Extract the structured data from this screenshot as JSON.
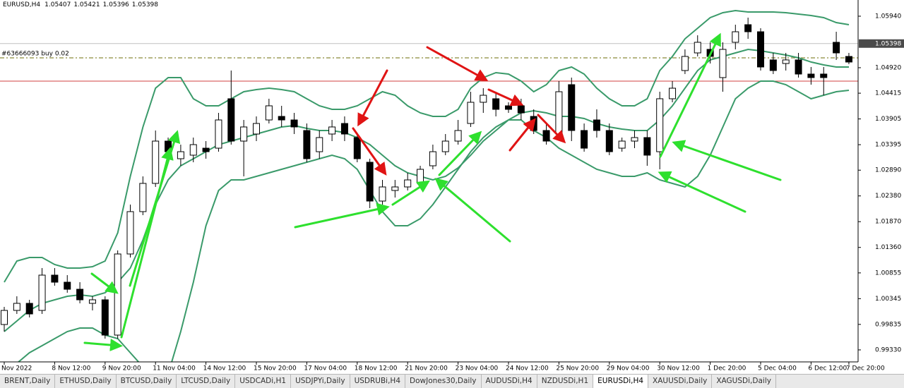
{
  "header": {
    "symbol": "EURUSD,H4",
    "ohlc": [
      1.05407,
      1.05421,
      1.05396,
      1.05398
    ]
  },
  "tabs": [
    "BRENT,Daily",
    "ETHUSD,Daily",
    "BTCUSD,Daily",
    "LTCUSD,Daily",
    "USDCADi,H1",
    "USDJPYi,Daily",
    "USDRUBi,H4",
    "DowJones30,Daily",
    "AUDUSDi,H4",
    "NZDUSDi,H1",
    "EURUSDi,H4",
    "XAUUSDi,Daily",
    "XAGUSDi,Daily"
  ],
  "active_tab": 10,
  "chart_data": {
    "type": "candlestick",
    "categories": [
      "Nov 2022",
      null,
      null,
      null,
      "8 Nov 12:00",
      null,
      null,
      null,
      "9 Nov 20:00",
      null,
      null,
      null,
      "11 Nov 04:00",
      null,
      null,
      null,
      "14 Nov 12:00",
      null,
      null,
      null,
      "15 Nov 20:00",
      null,
      null,
      null,
      "17 Nov 04:00",
      null,
      null,
      null,
      "18 Nov 12:00",
      null,
      null,
      null,
      "21 Nov 20:00",
      null,
      null,
      null,
      "23 Nov 04:00",
      null,
      null,
      null,
      "24 Nov 12:00",
      null,
      null,
      null,
      "25 Nov 20:00",
      null,
      null,
      null,
      "29 Nov 04:00",
      null,
      null,
      null,
      "30 Nov 12:00",
      null,
      null,
      null,
      "1 Dec 20:00",
      null,
      null,
      null,
      "5 Dec 04:00",
      null,
      null,
      null,
      "6 Dec 12:00",
      null,
      null,
      "7 Dec 20:00"
    ],
    "open": [
      0.99833,
      1.00112,
      1.00252,
      1.00112,
      1.00811,
      1.00671,
      1.00531,
      1.00252,
      1.00322,
      0.99623,
      1.0123,
      1.02069,
      1.02628,
      1.03466,
      1.03117,
      1.03187,
      1.03326,
      1.03326,
      1.04305,
      1.03466,
      1.03606,
      1.03885,
      1.03955,
      1.03885,
      1.03676,
      1.03256,
      1.03606,
      1.03815,
      1.03536,
      1.03047,
      1.02278,
      1.02488,
      1.02558,
      1.02628,
      1.02977,
      1.03256,
      1.03466,
      1.03815,
      1.04235,
      1.04305,
      1.04165,
      1.04165,
      1.03955,
      1.03676,
      1.03606,
      1.04584,
      1.03676,
      1.03885,
      1.03676,
      1.03326,
      1.03466,
      1.03536,
      1.03256,
      1.04305,
      1.04864,
      1.05213,
      1.05283,
      1.04724,
      1.05423,
      1.05772,
      1.05632,
      1.05074,
      1.05003,
      1.05074,
      1.04794,
      1.04794,
      1.05423,
      1.05143
    ],
    "high": [
      1.00182,
      1.00392,
      1.00322,
      1.00951,
      1.00951,
      1.00811,
      1.00671,
      1.00392,
      1.00392,
      1.013,
      1.02208,
      1.02767,
      1.03676,
      1.03536,
      1.03396,
      1.03536,
      1.03466,
      1.04025,
      1.04864,
      1.03885,
      1.03955,
      1.04305,
      1.04165,
      1.04025,
      1.03815,
      1.03676,
      1.03885,
      1.03955,
      1.03606,
      1.03117,
      1.02697,
      1.02697,
      1.02837,
      1.02977,
      1.03396,
      1.03606,
      1.03885,
      1.04444,
      1.04514,
      1.04444,
      1.04235,
      1.04305,
      1.04095,
      1.03815,
      1.04654,
      1.04724,
      1.03815,
      1.04095,
      1.03815,
      1.03536,
      1.03676,
      1.03676,
      1.04444,
      1.04654,
      1.05283,
      1.05562,
      1.05423,
      1.05423,
      1.05772,
      1.05912,
      1.05702,
      1.05213,
      1.05213,
      1.05213,
      1.04934,
      1.04934,
      1.05632,
      1.05213
    ],
    "low": [
      0.99693,
      1.00042,
      0.99973,
      1.00042,
      1.00601,
      1.00462,
      1.00252,
      1.00112,
      0.99553,
      0.99553,
      1.0116,
      1.01999,
      1.02558,
      1.03117,
      1.02977,
      1.03047,
      1.03117,
      1.03256,
      1.03396,
      1.02767,
      1.03466,
      1.03815,
      1.03746,
      1.03606,
      1.03047,
      1.03117,
      1.03466,
      1.03466,
      1.03047,
      1.02138,
      1.02208,
      1.02348,
      1.02488,
      1.02558,
      1.02907,
      1.03187,
      1.03396,
      1.03746,
      1.04025,
      1.03955,
      1.04025,
      1.03885,
      1.03606,
      1.03396,
      1.03536,
      1.03466,
      1.03256,
      1.03536,
      1.03187,
      1.03256,
      1.03326,
      1.02977,
      1.02907,
      1.04235,
      1.04794,
      1.05143,
      1.05003,
      1.04444,
      1.05283,
      1.05492,
      1.04864,
      1.04794,
      1.04864,
      1.04724,
      1.04584,
      1.04374,
      1.05074,
      1.0499
    ],
    "close": [
      1.00112,
      1.00252,
      1.00042,
      1.00811,
      1.00671,
      1.00531,
      1.00322,
      1.00322,
      0.99623,
      1.0123,
      1.02069,
      1.02628,
      1.03466,
      1.03256,
      1.03256,
      1.03396,
      1.03256,
      1.03885,
      1.03466,
      1.03746,
      1.03815,
      1.04165,
      1.03885,
      1.03746,
      1.03117,
      1.03536,
      1.03746,
      1.03606,
      1.03117,
      1.02278,
      1.02558,
      1.02558,
      1.02697,
      1.02907,
      1.03256,
      1.03466,
      1.03676,
      1.04235,
      1.04374,
      1.04095,
      1.04095,
      1.04025,
      1.03676,
      1.03466,
      1.04444,
      1.03676,
      1.03326,
      1.03676,
      1.03256,
      1.03466,
      1.03536,
      1.03187,
      1.04305,
      1.04514,
      1.05143,
      1.05423,
      1.05143,
      1.05283,
      1.05632,
      1.05632,
      1.04934,
      1.04864,
      1.05074,
      1.04794,
      1.04724,
      1.04724,
      1.05213,
      1.05032
    ],
    "bands": [
      {
        "color": "#3a9a6a",
        "values": [
          1.00671,
          1.0109,
          1.0116,
          1.0116,
          1.0102,
          1.00951,
          1.00951,
          1.00979,
          1.0109,
          1.01649,
          1.02767,
          1.03746,
          1.04514,
          1.04724,
          1.04724,
          1.04305,
          1.04165,
          1.04165,
          1.04305,
          1.04444,
          1.04486,
          1.04514,
          1.04486,
          1.04444,
          1.04305,
          1.04165,
          1.04095,
          1.04095,
          1.04165,
          1.04305,
          1.04444,
          1.04374,
          1.04165,
          1.04025,
          1.03955,
          1.03955,
          1.04095,
          1.04514,
          1.04724,
          1.04822,
          1.04794,
          1.04654,
          1.04444,
          1.04584,
          1.04864,
          1.04934,
          1.04794,
          1.04514,
          1.04305,
          1.04165,
          1.04165,
          1.04305,
          1.04864,
          1.05143,
          1.05492,
          1.05702,
          1.05912,
          1.06009,
          1.06051,
          1.06023,
          1.06023,
          1.06023,
          1.06009,
          1.05982,
          1.05954,
          1.05912,
          1.05814,
          1.05772
        ]
      },
      {
        "color": "#3a9a6a",
        "values": [
          0.99693,
          0.99903,
          1.00112,
          1.00252,
          1.00322,
          1.00392,
          1.0042,
          1.00392,
          1.00462,
          1.00671,
          1.00951,
          1.0151,
          1.02208,
          1.02697,
          1.02977,
          1.03117,
          1.03256,
          1.03396,
          1.03466,
          1.03536,
          1.03606,
          1.03676,
          1.03746,
          1.03773,
          1.03718,
          1.03676,
          1.03676,
          1.03634,
          1.03536,
          1.03396,
          1.03187,
          1.02977,
          1.02837,
          1.02767,
          1.02697,
          1.02767,
          1.02935,
          1.03187,
          1.03466,
          1.03676,
          1.03885,
          1.04025,
          1.04067,
          1.04025,
          1.03955,
          1.03955,
          1.03913,
          1.03815,
          1.03746,
          1.03704,
          1.03676,
          1.03676,
          1.03885,
          1.04165,
          1.04514,
          1.04864,
          1.05074,
          1.05143,
          1.05213,
          1.05283,
          1.05255,
          1.05213,
          1.05171,
          1.05115,
          1.05032,
          1.04975,
          1.04934,
          1.04934
        ]
      },
      {
        "color": "#3a9a6a",
        "values": [
          0.98854,
          0.99064,
          0.99274,
          0.99414,
          0.99553,
          0.99693,
          0.99763,
          0.99763,
          0.99623,
          0.99553,
          0.99274,
          0.98994,
          0.98785,
          0.98854,
          0.99693,
          1.00671,
          1.01789,
          1.02488,
          1.02697,
          1.02697,
          1.02767,
          1.02837,
          1.02907,
          1.02977,
          1.03047,
          1.03117,
          1.03187,
          1.03117,
          1.02907,
          1.02488,
          1.02069,
          1.01789,
          1.01789,
          1.01929,
          1.02208,
          1.02558,
          1.02907,
          1.03256,
          1.03536,
          1.03746,
          1.03885,
          1.03885,
          1.03676,
          1.03536,
          1.03326,
          1.03187,
          1.03047,
          1.02907,
          1.02837,
          1.02767,
          1.02767,
          1.02837,
          1.02697,
          1.02628,
          1.02558,
          1.02767,
          1.03187,
          1.03746,
          1.04305,
          1.04514,
          1.04654,
          1.04654,
          1.04584,
          1.04444,
          1.04305,
          1.04374,
          1.04444,
          1.04472
        ]
      }
    ],
    "last_price": 1.05398,
    "order": {
      "label": "#63666093 buy 0.02",
      "price": 1.05115,
      "color": "#8a8a3a"
    },
    "level_lines": [
      {
        "value": 1.04654,
        "color": "#d04040"
      }
    ],
    "ylim": [
      0.99092,
      1.06261
    ],
    "yticks": [
      {
        "value": 1.0594,
        "label": "1.05940"
      },
      {
        "value": 1.0492,
        "label": "1.04920"
      },
      1.04415,
      1.03905,
      1.03395,
      {
        "value": 1.0289,
        "label": "1.02890"
      },
      {
        "value": 1.0238,
        "label": "1.02380"
      },
      {
        "value": 1.0187,
        "label": "1.01870"
      },
      {
        "value": 1.0136,
        "label": "1.01360"
      },
      1.00855,
      1.00345,
      0.99835,
      {
        "value": 0.9933,
        "label": "0.99330"
      }
    ],
    "grid": false
  }
}
